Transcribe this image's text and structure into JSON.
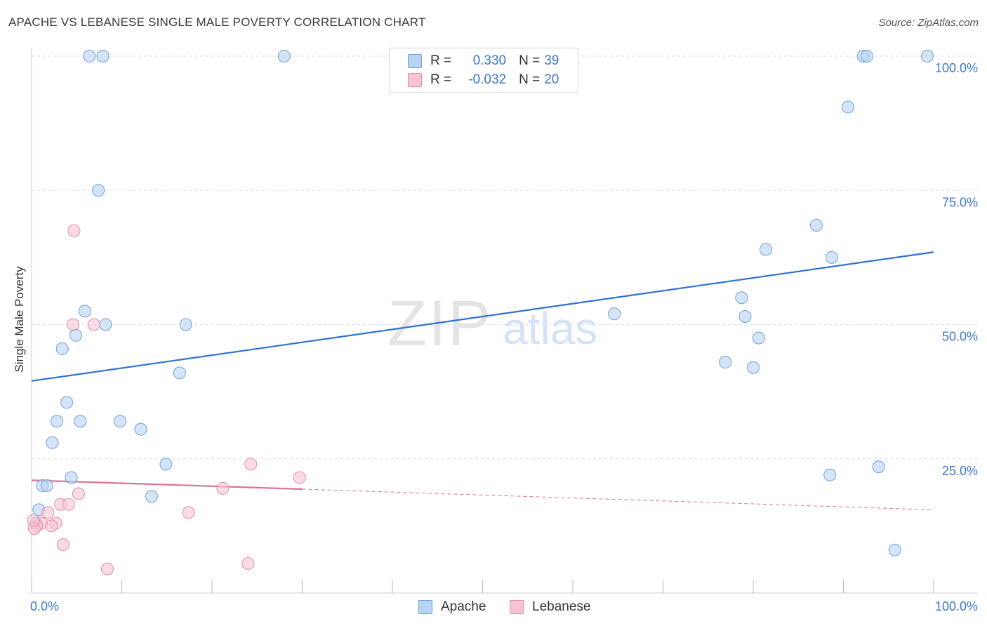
{
  "header": {
    "title": "APACHE VS LEBANESE SINGLE MALE POVERTY CORRELATION CHART",
    "source": "Source: ZipAtlas.com"
  },
  "watermark": {
    "zip": "ZIP",
    "atlas": "atlas"
  },
  "legend": {
    "rows": [
      {
        "r_label": "R =",
        "r_value": "0.330",
        "n_label": "N =",
        "n_value": "39"
      },
      {
        "r_label": "R =",
        "r_value": "-0.032",
        "n_label": "N =",
        "n_value": "20"
      }
    ]
  },
  "bottom_legend": {
    "apache": "Apache",
    "lebanese": "Lebanese"
  },
  "colors": {
    "apache_fill": "#b9d3f2",
    "apache_stroke": "#6f9fdc",
    "apache_line": "#2f72d0",
    "lebanese_fill": "#f7c4d3",
    "lebanese_stroke": "#e88aa8",
    "lebanese_line": "#e0709a",
    "tick_label": "#3a78d0",
    "grid": "#dddddd"
  },
  "chart_data": {
    "type": "scatter",
    "title": "APACHE VS LEBANESE SINGLE MALE POVERTY CORRELATION CHART",
    "xlabel": "",
    "ylabel": "Single Male Poverty",
    "xlim": [
      0,
      100
    ],
    "ylim": [
      0,
      100
    ],
    "x_tick_labels": [
      "0.0%",
      "100.0%"
    ],
    "y_tick_labels": [
      {
        "value": 25,
        "label": "25.0%"
      },
      {
        "value": 50,
        "label": "50.0%"
      },
      {
        "value": 75,
        "label": "75.0%"
      },
      {
        "value": 100,
        "label": "100.0%"
      }
    ],
    "grid": true,
    "legend_position": "top-center",
    "series": [
      {
        "name": "Apache",
        "r": 0.33,
        "n": 39,
        "trend": {
          "x0": 0,
          "y0": 39.5,
          "x1": 100,
          "y1": 63.5,
          "dashed_from": null
        },
        "points": [
          [
            6.4,
            100
          ],
          [
            7.9,
            100
          ],
          [
            28.0,
            100
          ],
          [
            92.2,
            100
          ],
          [
            92.6,
            100
          ],
          [
            99.3,
            100
          ],
          [
            90.5,
            90.5
          ],
          [
            7.4,
            75
          ],
          [
            87.0,
            68.5
          ],
          [
            81.4,
            64
          ],
          [
            88.7,
            62.5
          ],
          [
            5.9,
            52.5
          ],
          [
            8.2,
            50
          ],
          [
            17.1,
            50
          ],
          [
            64.6,
            52
          ],
          [
            78.7,
            55
          ],
          [
            79.1,
            51.5
          ],
          [
            80.6,
            47.5
          ],
          [
            4.9,
            48
          ],
          [
            3.4,
            45.5
          ],
          [
            16.4,
            41
          ],
          [
            76.9,
            43
          ],
          [
            80.0,
            42
          ],
          [
            3.9,
            35.5
          ],
          [
            2.8,
            32
          ],
          [
            5.4,
            32
          ],
          [
            9.8,
            32
          ],
          [
            12.1,
            30.5
          ],
          [
            2.3,
            28
          ],
          [
            14.9,
            24
          ],
          [
            93.9,
            23.5
          ],
          [
            88.5,
            22
          ],
          [
            4.4,
            21.5
          ],
          [
            1.2,
            20
          ],
          [
            1.7,
            20
          ],
          [
            13.3,
            18
          ],
          [
            0.8,
            15.5
          ],
          [
            0.5,
            13
          ],
          [
            95.7,
            8
          ]
        ]
      },
      {
        "name": "Lebanese",
        "r": -0.032,
        "n": 20,
        "trend": {
          "x0": 0,
          "y0": 21,
          "x1": 100,
          "y1": 15.5,
          "dashed_from": 30
        },
        "points": [
          [
            4.7,
            67.5
          ],
          [
            4.6,
            50
          ],
          [
            6.9,
            50
          ],
          [
            24.3,
            24
          ],
          [
            29.7,
            21.5
          ],
          [
            21.2,
            19.5
          ],
          [
            5.2,
            18.5
          ],
          [
            3.2,
            16.5
          ],
          [
            4.1,
            16.5
          ],
          [
            1.8,
            15
          ],
          [
            17.4,
            15
          ],
          [
            1.1,
            13
          ],
          [
            2.7,
            13
          ],
          [
            2.2,
            12.5
          ],
          [
            0.6,
            12.5
          ],
          [
            0.3,
            12
          ],
          [
            3.5,
            9
          ],
          [
            24.0,
            5.5
          ],
          [
            8.4,
            4.5
          ],
          [
            0.2,
            13.5
          ]
        ]
      }
    ]
  }
}
